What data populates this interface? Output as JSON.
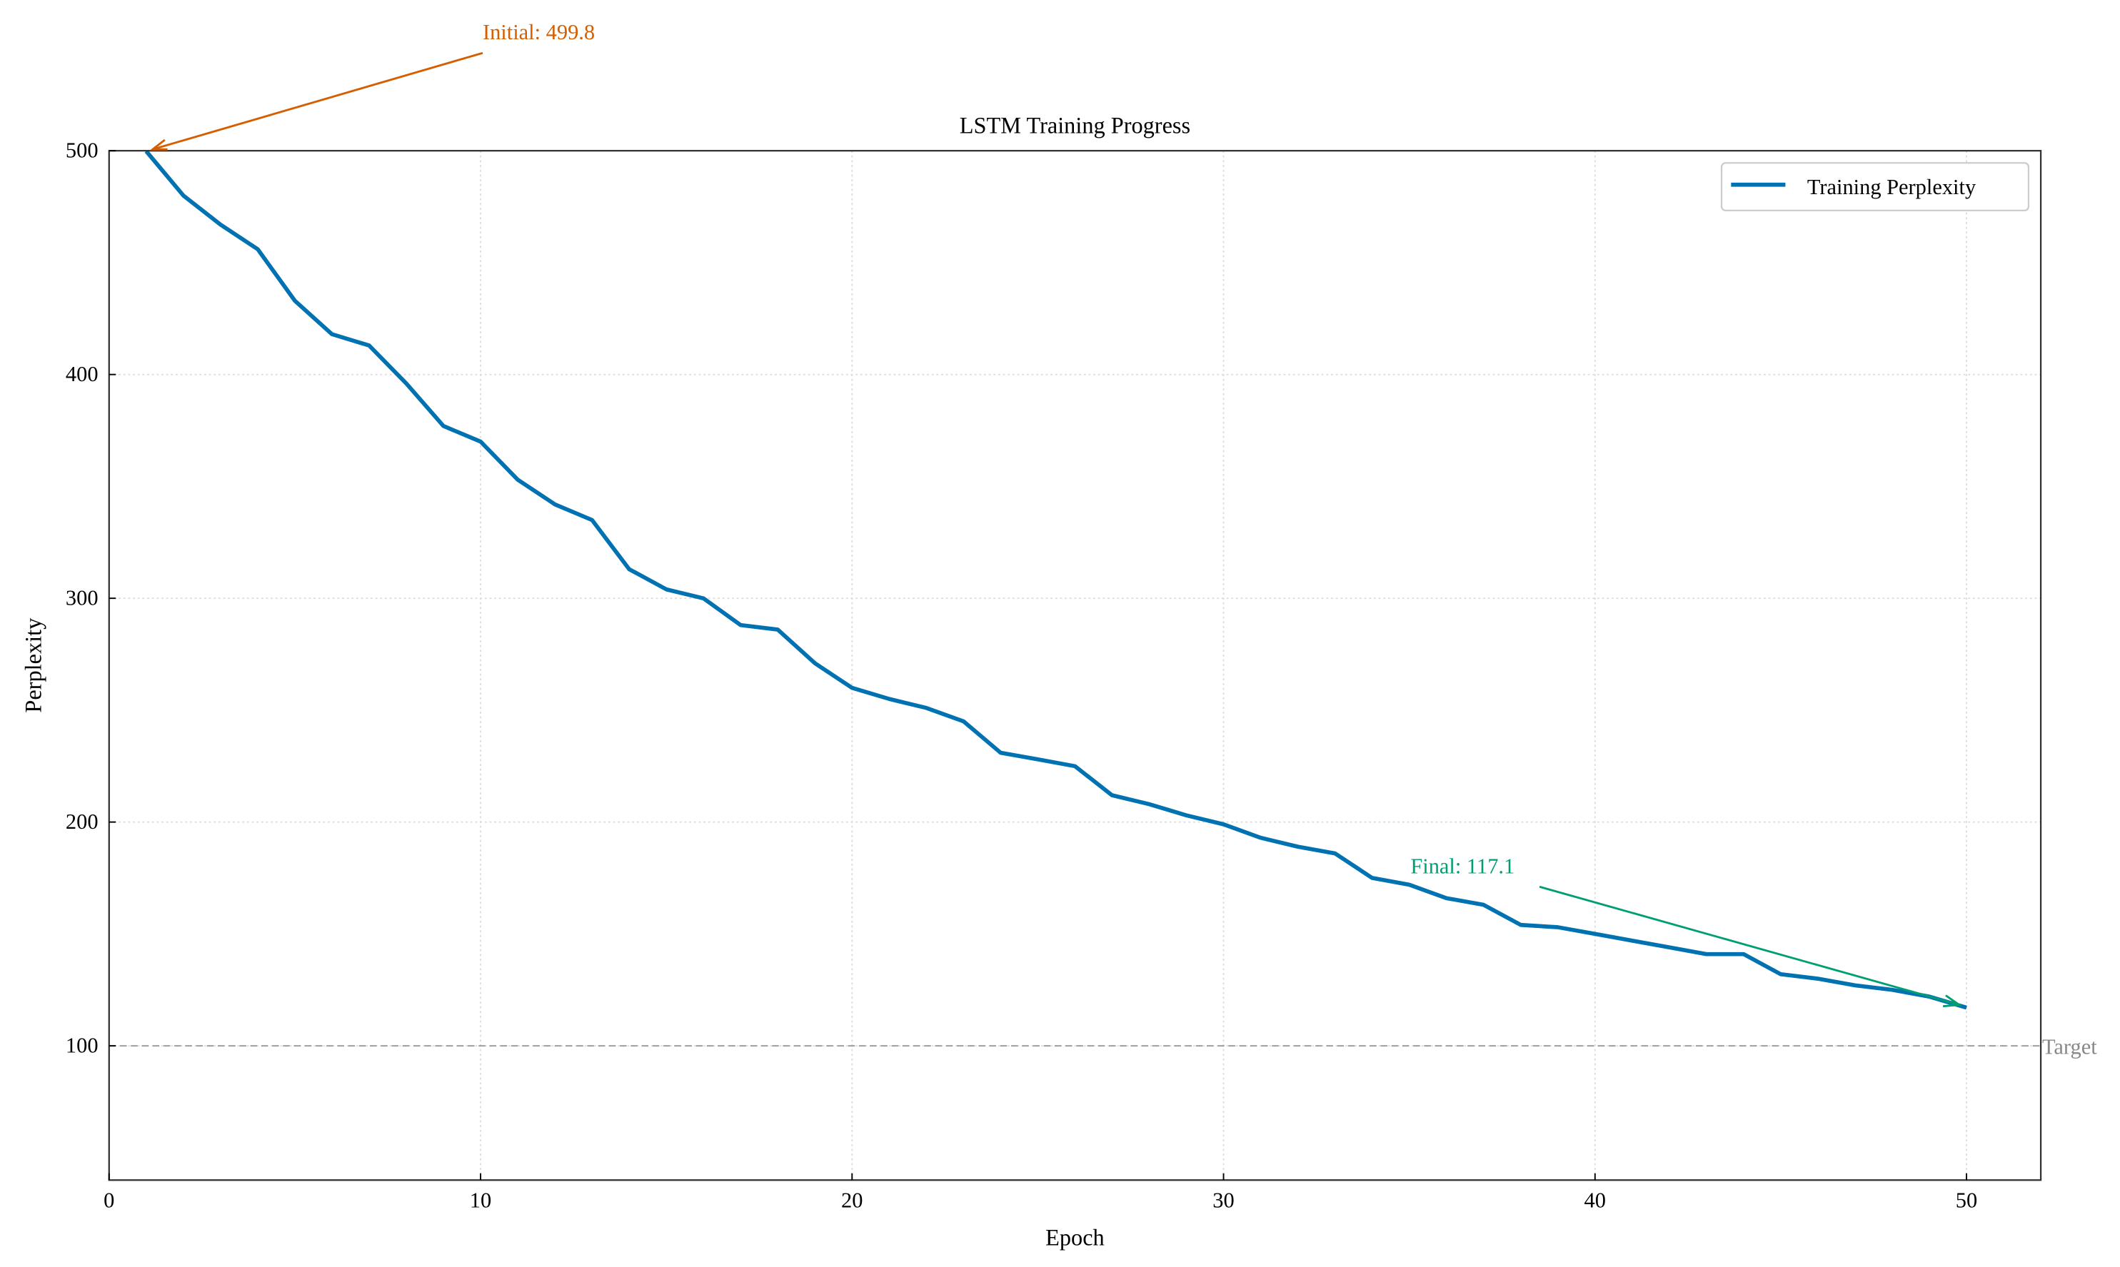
{
  "chart_data": {
    "type": "line",
    "title": "LSTM Training Progress",
    "xlabel": "Epoch",
    "ylabel": "Perplexity",
    "xlim": [
      0,
      52
    ],
    "ylim": [
      40,
      500
    ],
    "xticks": [
      0,
      10,
      20,
      30,
      40,
      50
    ],
    "yticks": [
      100,
      200,
      300,
      400,
      500
    ],
    "grid": true,
    "legend_position": "top-right",
    "series": [
      {
        "name": "Training Perplexity",
        "color": "#0072B2",
        "x": [
          1,
          2,
          3,
          4,
          5,
          6,
          7,
          8,
          9,
          10,
          11,
          12,
          13,
          14,
          15,
          16,
          17,
          18,
          19,
          20,
          21,
          22,
          23,
          24,
          25,
          26,
          27,
          28,
          29,
          30,
          31,
          32,
          33,
          34,
          35,
          36,
          37,
          38,
          39,
          40,
          41,
          42,
          43,
          44,
          45,
          46,
          47,
          48,
          49,
          50
        ],
        "y": [
          499.8,
          480,
          467,
          456,
          433,
          418,
          413,
          396,
          377,
          370,
          353,
          342,
          335,
          313,
          304,
          300,
          288,
          286,
          271,
          260,
          255,
          251,
          245,
          231,
          228,
          225,
          212,
          208,
          203,
          199,
          193,
          189,
          186,
          175,
          172,
          166,
          163,
          154,
          153,
          150,
          147,
          144,
          141,
          141,
          132,
          130,
          127,
          125,
          122,
          117.1
        ]
      }
    ],
    "reference_line": {
      "y": 100,
      "label": "Target",
      "color": "#999999",
      "style": "dashed"
    },
    "annotations": [
      {
        "text": "Initial: 499.8",
        "x": 1,
        "y": 499.8,
        "color": "#D55E00"
      },
      {
        "text": "Final: 117.1",
        "x": 50,
        "y": 117.1,
        "color": "#009E73"
      }
    ]
  }
}
